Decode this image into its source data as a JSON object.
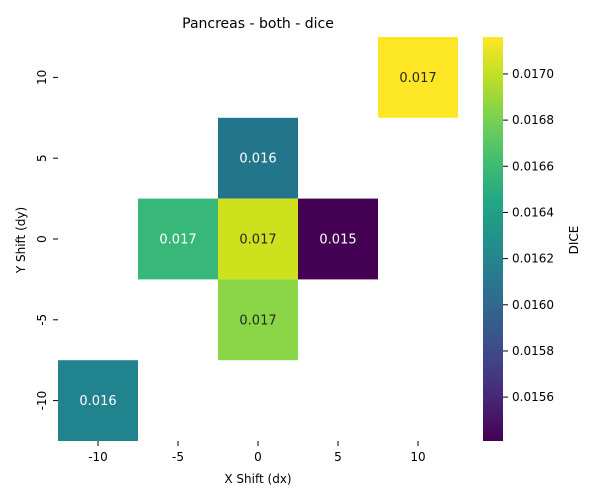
{
  "chart_data": {
    "type": "heatmap",
    "title": "Pancreas - both - dice",
    "xlabel": "X Shift (dx)",
    "ylabel": "Y Shift (dy)",
    "colorbar_label": "DICE",
    "colormap": "viridis",
    "x_categories": [
      "-10",
      "-5",
      "0",
      "5",
      "10"
    ],
    "y_categories": [
      "10",
      "5",
      "0",
      "-5",
      "-10"
    ],
    "value_range": [
      0.01541,
      0.01716
    ],
    "colorbar_ticks": [
      "0.0156",
      "0.0158",
      "0.0160",
      "0.0162",
      "0.0164",
      "0.0166",
      "0.0168",
      "0.0170"
    ],
    "colorbar_tick_values": [
      0.0156,
      0.0158,
      0.016,
      0.0162,
      0.0164,
      0.0166,
      0.0168,
      0.017
    ],
    "cells": [
      {
        "x": "10",
        "y": "10",
        "value": 0.01715,
        "label": "0.017",
        "color": "#fde725"
      },
      {
        "x": "0",
        "y": "5",
        "value": 0.01598,
        "label": "0.016",
        "color": "#23758b"
      },
      {
        "x": "-5",
        "y": "0",
        "value": 0.01654,
        "label": "0.017",
        "color": "#37b878"
      },
      {
        "x": "0",
        "y": "0",
        "value": 0.01702,
        "label": "0.017",
        "color": "#cde11d"
      },
      {
        "x": "5",
        "y": "0",
        "value": 0.01541,
        "label": "0.015",
        "color": "#440154"
      },
      {
        "x": "0",
        "y": "-5",
        "value": 0.01685,
        "label": "0.017",
        "color": "#8bd646"
      },
      {
        "x": "-10",
        "y": "-10",
        "value": 0.01613,
        "label": "0.016",
        "color": "#21838e"
      }
    ]
  }
}
